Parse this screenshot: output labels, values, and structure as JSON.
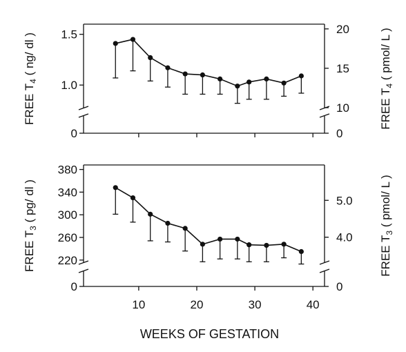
{
  "chart_data": [
    {
      "type": "line",
      "ylabel_left_main": "FREE  T",
      "ylabel_left_sub": "4",
      "ylabel_left_unit": " ( ng/ dl )",
      "ylabel_right_main": "FREE  T",
      "ylabel_right_sub": "4",
      "ylabel_right_unit": " ( pmol/ L )",
      "left_ticks": [
        {
          "value": 1.5,
          "label": "1.5"
        },
        {
          "value": 1.0,
          "label": "1.0"
        }
      ],
      "left_zero_label": "0",
      "right_ticks": [
        {
          "value": 20,
          "label": "20"
        },
        {
          "value": 15,
          "label": "15"
        },
        {
          "value": 10,
          "label": "10"
        }
      ],
      "right_zero_label": "0",
      "ylim": [
        0.75,
        1.6
      ],
      "right_ylim": [
        9.65,
        20.6
      ],
      "axis_break": true,
      "x": [
        6,
        9,
        12,
        15,
        18,
        21,
        24,
        27,
        29,
        32,
        35,
        38
      ],
      "y": [
        1.41,
        1.45,
        1.27,
        1.17,
        1.11,
        1.1,
        1.06,
        0.99,
        1.03,
        1.06,
        1.02,
        1.09
      ],
      "error_lower": [
        1.07,
        1.14,
        1.04,
        0.98,
        0.91,
        0.91,
        0.91,
        0.82,
        0.86,
        0.86,
        0.89,
        0.92
      ]
    },
    {
      "type": "line",
      "ylabel_left_main": "FREE  T",
      "ylabel_left_sub": "3",
      "ylabel_left_unit": " ( pg/ dl )",
      "ylabel_right_main": "FREE  T",
      "ylabel_right_sub": "3",
      "ylabel_right_unit": " ( pmol/ L )",
      "left_ticks": [
        {
          "value": 380,
          "label": "380"
        },
        {
          "value": 340,
          "label": "340"
        },
        {
          "value": 300,
          "label": "300"
        },
        {
          "value": 260,
          "label": "260"
        },
        {
          "value": 220,
          "label": "220"
        }
      ],
      "left_zero_label": "0",
      "right_ticks": [
        {
          "value": 5.0,
          "label": "5.0"
        },
        {
          "value": 4.0,
          "label": "4.0"
        }
      ],
      "right_zero_label": "0",
      "ylim": [
        210,
        388
      ],
      "axis_break": true,
      "x": [
        6,
        9,
        12,
        15,
        18,
        21,
        24,
        27,
        29,
        32,
        35,
        38
      ],
      "y": [
        348,
        330,
        301,
        285,
        276,
        248,
        257,
        257,
        247,
        246,
        248,
        235
      ],
      "error_lower": [
        301,
        287,
        254,
        252,
        236,
        217,
        222,
        222,
        217,
        217,
        224,
        213
      ]
    }
  ],
  "x_axis": {
    "title": "WEEKS OF GESTATION",
    "ticks": [
      {
        "value": 10,
        "label": "10"
      },
      {
        "value": 20,
        "label": "20"
      },
      {
        "value": 30,
        "label": "30"
      },
      {
        "value": 40,
        "label": "40"
      }
    ],
    "xlim": [
      0.5,
      42
    ]
  }
}
